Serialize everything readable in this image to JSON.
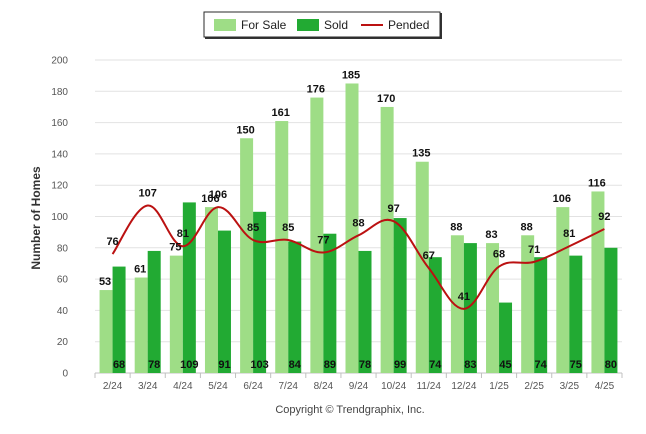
{
  "chart_data": {
    "type": "bar",
    "ylabel": "Number of Homes",
    "ylim": [
      0,
      200
    ],
    "yticks": [
      0,
      20,
      40,
      60,
      80,
      100,
      120,
      140,
      160,
      180,
      200
    ],
    "categories": [
      "2/24",
      "3/24",
      "4/24",
      "5/24",
      "6/24",
      "7/24",
      "8/24",
      "9/24",
      "10/24",
      "11/24",
      "12/24",
      "1/25",
      "2/25",
      "3/25",
      "4/25"
    ],
    "series": [
      {
        "name": "For Sale",
        "kind": "bar",
        "color": "#9edd86",
        "values": [
          53,
          61,
          75,
          106,
          150,
          161,
          176,
          185,
          170,
          135,
          88,
          83,
          88,
          106,
          116
        ]
      },
      {
        "name": "Sold",
        "kind": "bar",
        "color": "#22aa33",
        "values": [
          68,
          78,
          109,
          91,
          103,
          84,
          89,
          78,
          99,
          74,
          83,
          45,
          74,
          75,
          80
        ]
      },
      {
        "name": "Pended",
        "kind": "line",
        "color": "#bb1111",
        "values": [
          76,
          107,
          81,
          106,
          85,
          85,
          77,
          88,
          97,
          67,
          41,
          68,
          71,
          81,
          92
        ]
      }
    ],
    "legend": "top-center",
    "grid": true,
    "footer": "Copyright © Trendgraphix, Inc."
  }
}
